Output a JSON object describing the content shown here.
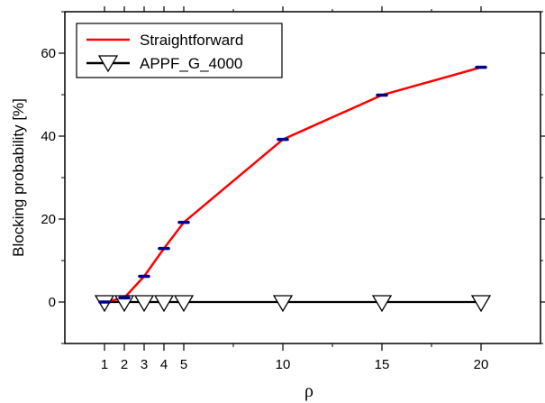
{
  "chart_data": {
    "type": "line",
    "xlabel": "ρ",
    "ylabel": "Blocking probability [%]",
    "xlim": [
      -1,
      23
    ],
    "ylim": [
      -10,
      70
    ],
    "xticks": [
      1,
      2,
      3,
      4,
      5,
      10,
      15,
      20
    ],
    "yticks": [
      0,
      20,
      40,
      60
    ],
    "legend_position": "top-left",
    "grid": false,
    "series": [
      {
        "name": "Straightforward",
        "color": "#ff0000",
        "point_marker_color": "#00008b",
        "marker": "dash",
        "x": [
          1,
          2,
          3,
          4,
          5,
          10,
          15,
          20
        ],
        "y": [
          0,
          1,
          6.2,
          12.9,
          19.2,
          39.2,
          49.9,
          56.6
        ]
      },
      {
        "name": "APPF_G_4000",
        "color": "#000000",
        "marker": "triangle-down",
        "x": [
          1,
          2,
          3,
          4,
          5,
          10,
          15,
          20
        ],
        "y": [
          0,
          0,
          0,
          0,
          0,
          0,
          0,
          0
        ]
      }
    ]
  }
}
